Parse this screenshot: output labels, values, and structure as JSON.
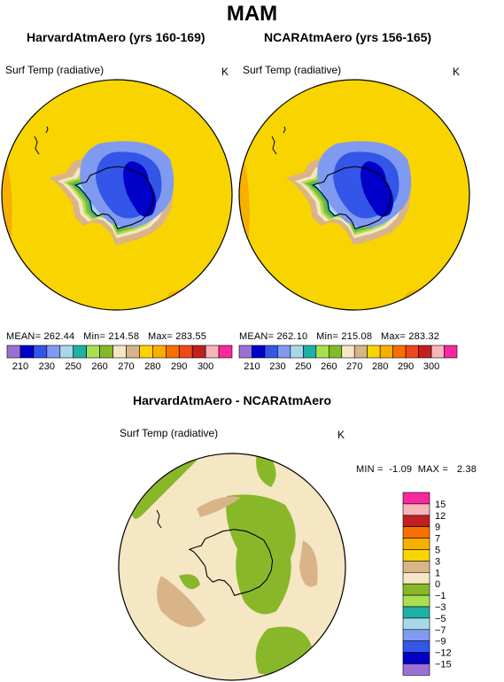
{
  "title": "MAM",
  "panels": [
    {
      "title": "HarvardAtmAero (yrs 160-169)",
      "variable": "Surf Temp (radiative)",
      "unit": "K",
      "stats": {
        "mean_label": "MEAN=",
        "mean": "262.44",
        "min_label": "Min=",
        "min": "214.58",
        "max_label": "Max=",
        "max": "283.55"
      }
    },
    {
      "title": "NCARAtmAero (yrs 156-165)",
      "variable": "Surf Temp (radiative)",
      "unit": "K",
      "stats": {
        "mean_label": "MEAN=",
        "mean": "262.10",
        "min_label": "Min=",
        "min": "215.08",
        "max_label": "Max=",
        "max": "283.32"
      }
    }
  ],
  "abs_colorbar": {
    "colors": [
      "#9a6fd6",
      "#0000c8",
      "#3355e8",
      "#7f9af0",
      "#a8d8e8",
      "#1eb0a8",
      "#a8e050",
      "#88b82a",
      "#f5e6c4",
      "#d8b488",
      "#f8d400",
      "#f8b000",
      "#f87000",
      "#f04818",
      "#c02020",
      "#f8b4b8",
      "#f8289e"
    ],
    "labels": [
      "210",
      "230",
      "250",
      "260",
      "270",
      "280",
      "290",
      "300"
    ],
    "labels_full": [
      "210",
      "230",
      "250",
      "260",
      "270",
      "280",
      "290",
      "300"
    ],
    "tick_values": [
      "210",
      "220",
      "230",
      "240",
      "250",
      "255",
      "260",
      "265",
      "270",
      "275",
      "280",
      "285",
      "290",
      "295",
      "300"
    ]
  },
  "diff_panel": {
    "title": "HarvardAtmAero - NCARAtmAero",
    "variable": "Surf Temp (radiative)",
    "unit": "K",
    "min_label": "MIN =",
    "min": "-1.09",
    "max_label": "MAX =",
    "max": "2.38"
  },
  "diff_colorbar": {
    "colors": [
      "#f8289e",
      "#f8b4b8",
      "#c02020",
      "#f87000",
      "#f8b000",
      "#f8d400",
      "#d8b488",
      "#f5e6c4",
      "#88b82a",
      "#a8e050",
      "#1eb0a8",
      "#a8d8e8",
      "#7f9af0",
      "#3355e8",
      "#0000c8",
      "#9a6fd6"
    ],
    "labels": [
      "15",
      "12",
      "9",
      "7",
      "5",
      "3",
      "1",
      "0",
      "−1",
      "−3",
      "−5",
      "−7",
      "−9",
      "−12",
      "−15"
    ]
  },
  "map_colors": {
    "outer": "#f8d400",
    "orange": "#f8b000",
    "tan": "#d8b488",
    "beige": "#f5e6c4",
    "green": "#88b82a",
    "lightgreen": "#a8e050",
    "teal": "#1eb0a8",
    "lightblue": "#a8d8e8",
    "blue1": "#7f9af0",
    "blue2": "#3355e8",
    "blue3": "#0000c8",
    "diff_bg": "#f5e6c4",
    "diff_green": "#88b82a",
    "diff_tan": "#d8b488"
  }
}
